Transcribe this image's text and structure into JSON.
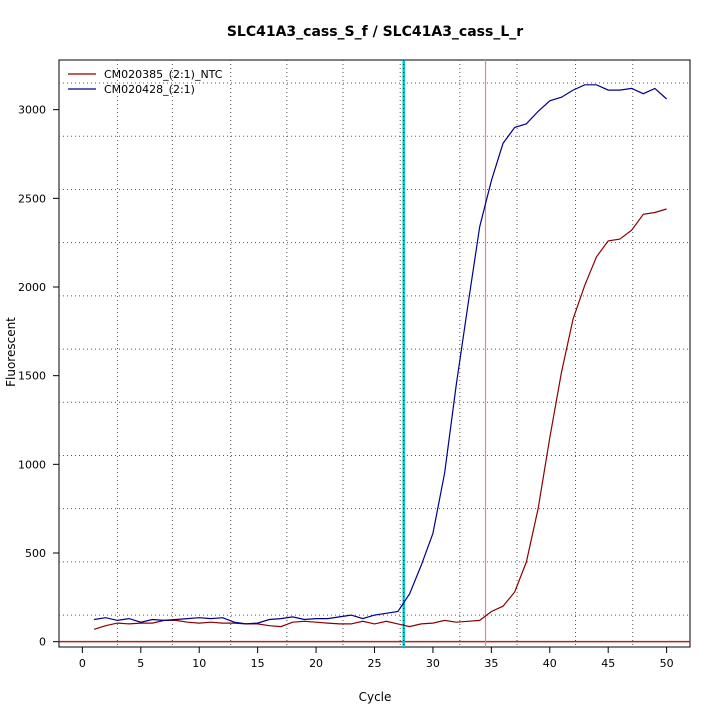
{
  "chart_data": {
    "type": "line",
    "title": "SLC41A3_cass_S_f / SLC41A3_cass_L_r",
    "xlabel": "Cycle",
    "ylabel": "Fluorescent",
    "xlim": [
      -2,
      52
    ],
    "ylim": [
      -30,
      3280
    ],
    "xticks": [
      0,
      5,
      10,
      15,
      20,
      25,
      30,
      35,
      40,
      45,
      50
    ],
    "yticks": [
      0,
      500,
      1000,
      1500,
      2000,
      2500,
      3000
    ],
    "grid": "dotted",
    "vertical_grid_x": [
      3,
      7.7,
      12.7,
      17.5,
      22.3,
      27.2,
      32.3,
      37.2,
      42.2,
      47.1
    ],
    "horizontal_grid_y": [
      150,
      450,
      750,
      1050,
      1350,
      1650,
      1950,
      2250,
      2550,
      2850,
      3150
    ],
    "threshold_y": 0,
    "threshold_color": "#b22222",
    "cyan_line_x": 27.5,
    "cyan_color": "#00cccc",
    "ct_line_x": 34.5,
    "ct_color": "#f08080",
    "legend_position": "top-left",
    "series": [
      {
        "name": "CM020385_(2:1)_NTC",
        "color": "#8b0000",
        "x": [
          1,
          2,
          3,
          4,
          5,
          6,
          7,
          8,
          9,
          10,
          11,
          12,
          13,
          14,
          15,
          16,
          17,
          18,
          19,
          20,
          21,
          22,
          23,
          24,
          25,
          26,
          27,
          28,
          29,
          30,
          31,
          32,
          33,
          34,
          35,
          36,
          37,
          38,
          39,
          40,
          41,
          42,
          43,
          44,
          45,
          46,
          47,
          48,
          49,
          50
        ],
        "values": [
          70,
          90,
          105,
          100,
          105,
          105,
          120,
          120,
          110,
          105,
          110,
          105,
          105,
          100,
          100,
          90,
          85,
          110,
          115,
          110,
          105,
          100,
          100,
          115,
          100,
          115,
          100,
          85,
          100,
          105,
          120,
          110,
          115,
          120,
          170,
          200,
          280,
          450,
          750,
          1150,
          1520,
          1820,
          2010,
          2170,
          2260,
          2270,
          2320,
          2410,
          2420,
          2440
        ]
      },
      {
        "name": "CM020428_(2:1)",
        "color": "#00008b",
        "x": [
          1,
          2,
          3,
          4,
          5,
          6,
          7,
          8,
          9,
          10,
          11,
          12,
          13,
          14,
          15,
          16,
          17,
          18,
          19,
          20,
          21,
          22,
          23,
          24,
          25,
          26,
          27,
          28,
          29,
          30,
          31,
          32,
          33,
          34,
          35,
          36,
          37,
          38,
          39,
          40,
          41,
          42,
          43,
          44,
          45,
          46,
          47,
          48,
          49,
          50
        ],
        "values": [
          125,
          135,
          120,
          130,
          110,
          125,
          120,
          125,
          130,
          135,
          130,
          135,
          110,
          100,
          105,
          125,
          130,
          140,
          125,
          130,
          130,
          140,
          150,
          130,
          150,
          160,
          170,
          270,
          430,
          610,
          950,
          1450,
          1900,
          2340,
          2600,
          2810,
          2900,
          2920,
          2990,
          3050,
          3070,
          3110,
          3140,
          3140,
          3110,
          3110,
          3120,
          3090,
          3120,
          3060
        ]
      }
    ]
  }
}
